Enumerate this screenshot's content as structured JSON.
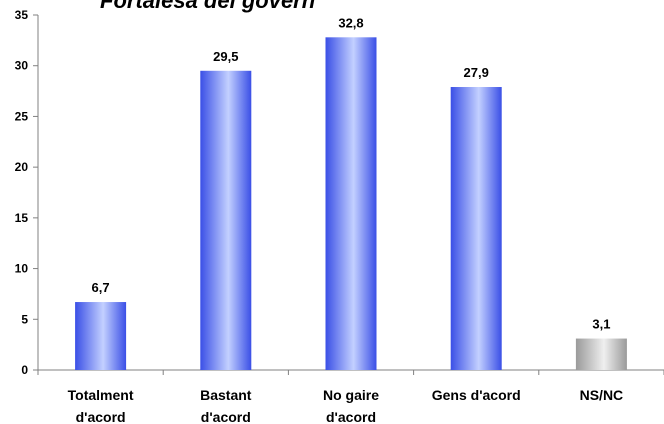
{
  "chart_data": {
    "type": "bar",
    "title": "Fortalesa del govern",
    "categories": [
      [
        "Totalment",
        "d'acord"
      ],
      [
        "Bastant",
        "d'acord"
      ],
      [
        "No gaire",
        "d'acord"
      ],
      [
        "Gens d'acord"
      ],
      [
        "NS/NC"
      ]
    ],
    "values": [
      6.7,
      29.5,
      32.8,
      27.9,
      3.1
    ],
    "value_labels": [
      "6,7",
      "29,5",
      "32,8",
      "27,9",
      "3,1"
    ],
    "bar_colors": [
      "blue",
      "blue",
      "blue",
      "blue",
      "gray"
    ],
    "ylim": [
      0,
      35
    ],
    "yticks": [
      0,
      5,
      10,
      15,
      20,
      25,
      30,
      35
    ],
    "xlabel": "",
    "ylabel": "",
    "grid": false,
    "legend": "none"
  },
  "colors": {
    "blue_dark": "#3a4fe6",
    "blue_light": "#c3d0ff",
    "gray_dark": "#9a9a9a",
    "gray_light": "#efefef",
    "axis": "#808080"
  }
}
